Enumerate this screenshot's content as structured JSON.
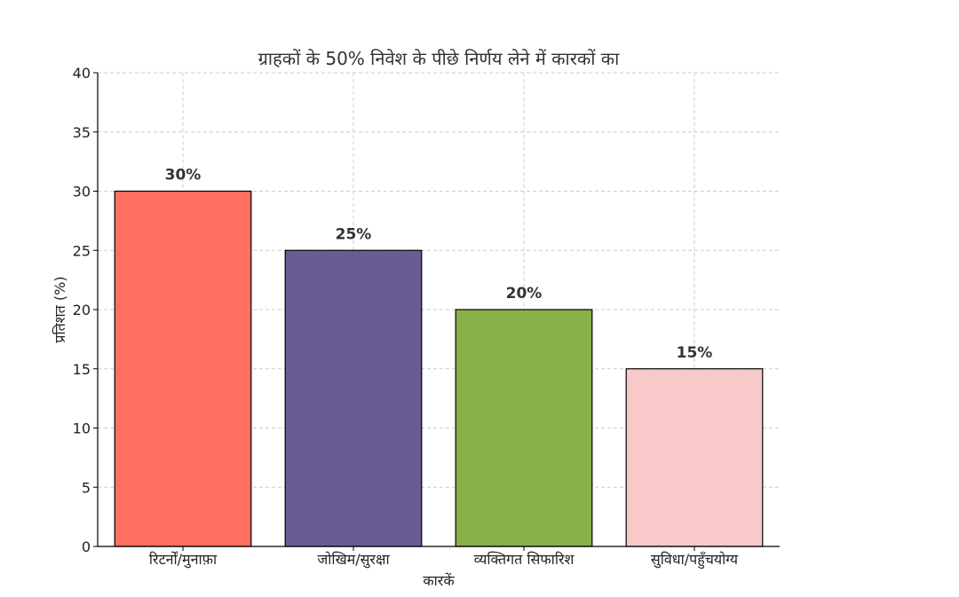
{
  "chart_data": {
    "type": "bar",
    "title": "ग्राहकों के 50% निवेश के पीछे निर्णय लेने में कारकों का",
    "xlabel": "कारकें",
    "ylabel": "प्रतिशत (%)",
    "categories": [
      "रिटर्नों/मुनाफ़ा",
      "जोखिम/सुरक्षा",
      "व्यक्तिगत सिफारिश",
      "सुविधा/पहुँचयोग्य"
    ],
    "values": [
      30,
      25,
      20,
      15
    ],
    "data_labels": [
      "30%",
      "25%",
      "20%",
      "15%"
    ],
    "colors": [
      "#ff6f61",
      "#6b5b95",
      "#88b04b",
      "#f7cac9"
    ],
    "ylim": [
      0,
      40
    ],
    "yticks": [
      0,
      5,
      10,
      15,
      20,
      25,
      30,
      35,
      40
    ],
    "ytick_labels": [
      "0",
      "5",
      "10",
      "15",
      "20",
      "25",
      "30",
      "35",
      "40"
    ],
    "grid": true,
    "legend": "none"
  }
}
